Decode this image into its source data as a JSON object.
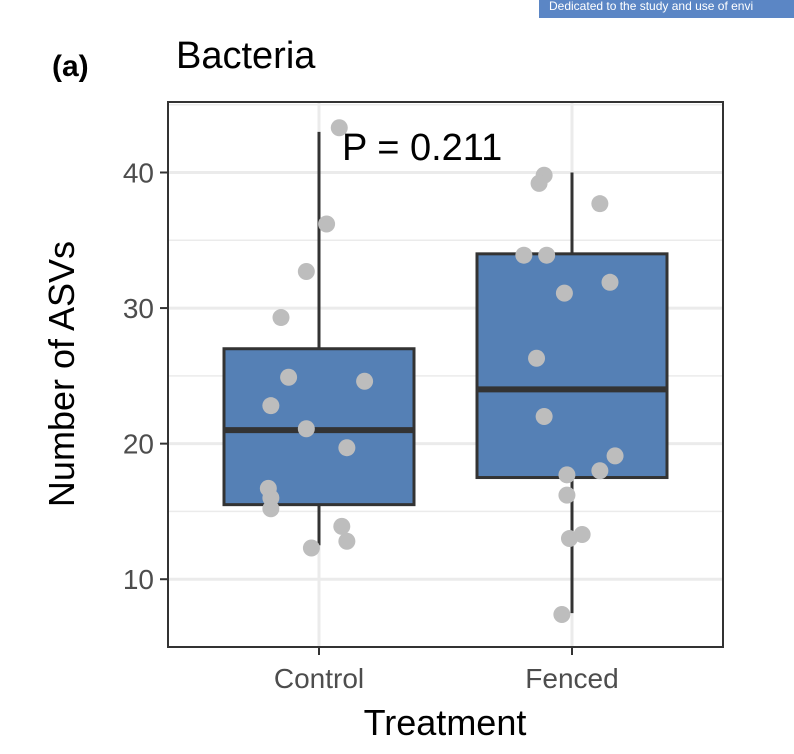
{
  "banner_text": "Dedicated to the study and use of envi",
  "panel_label": "(a)",
  "chart_data": {
    "type": "box",
    "title": "Bacteria",
    "annotation": "P = 0.211",
    "xlabel": "Treatment",
    "ylabel": "Number of ASVs",
    "ylim": [
      5,
      45.2
    ],
    "yticks": [
      10,
      20,
      30,
      40
    ],
    "categories": [
      "Control",
      "Fenced"
    ],
    "grid": true,
    "colors": {
      "box_fill": "#5580b5",
      "box_edge": "#333333",
      "points": "#bdbdbd",
      "grid": "#ebebeb"
    },
    "boxes": [
      {
        "category": "Control",
        "q1": 15.5,
        "median": 21.0,
        "q3": 27.0,
        "whisker_low": 12.5,
        "whisker_high": 43.0
      },
      {
        "category": "Fenced",
        "q1": 17.5,
        "median": 24.0,
        "q3": 34.0,
        "whisker_low": 7.5,
        "whisker_high": 40.0
      }
    ],
    "points": [
      {
        "category": "Control",
        "jitter": 0.08,
        "y": 43.3
      },
      {
        "category": "Control",
        "jitter": 0.03,
        "y": 36.2
      },
      {
        "category": "Control",
        "jitter": -0.05,
        "y": 32.7
      },
      {
        "category": "Control",
        "jitter": -0.15,
        "y": 29.3
      },
      {
        "category": "Control",
        "jitter": -0.12,
        "y": 24.9
      },
      {
        "category": "Control",
        "jitter": 0.18,
        "y": 24.6
      },
      {
        "category": "Control",
        "jitter": -0.19,
        "y": 22.8
      },
      {
        "category": "Control",
        "jitter": -0.05,
        "y": 21.1
      },
      {
        "category": "Control",
        "jitter": 0.11,
        "y": 19.7
      },
      {
        "category": "Control",
        "jitter": -0.2,
        "y": 16.7
      },
      {
        "category": "Control",
        "jitter": -0.19,
        "y": 16.0
      },
      {
        "category": "Control",
        "jitter": -0.19,
        "y": 15.2
      },
      {
        "category": "Control",
        "jitter": 0.09,
        "y": 13.9
      },
      {
        "category": "Control",
        "jitter": 0.11,
        "y": 12.8
      },
      {
        "category": "Control",
        "jitter": -0.03,
        "y": 12.3
      },
      {
        "category": "Fenced",
        "jitter": -0.11,
        "y": 39.8
      },
      {
        "category": "Fenced",
        "jitter": -0.13,
        "y": 39.2
      },
      {
        "category": "Fenced",
        "jitter": 0.11,
        "y": 37.7
      },
      {
        "category": "Fenced",
        "jitter": -0.19,
        "y": 33.9
      },
      {
        "category": "Fenced",
        "jitter": -0.1,
        "y": 33.9
      },
      {
        "category": "Fenced",
        "jitter": 0.15,
        "y": 31.9
      },
      {
        "category": "Fenced",
        "jitter": -0.03,
        "y": 31.1
      },
      {
        "category": "Fenced",
        "jitter": -0.14,
        "y": 26.3
      },
      {
        "category": "Fenced",
        "jitter": -0.11,
        "y": 22.0
      },
      {
        "category": "Fenced",
        "jitter": 0.17,
        "y": 19.1
      },
      {
        "category": "Fenced",
        "jitter": 0.11,
        "y": 18.0
      },
      {
        "category": "Fenced",
        "jitter": -0.02,
        "y": 17.7
      },
      {
        "category": "Fenced",
        "jitter": -0.02,
        "y": 16.2
      },
      {
        "category": "Fenced",
        "jitter": 0.04,
        "y": 13.3
      },
      {
        "category": "Fenced",
        "jitter": -0.01,
        "y": 13.0
      },
      {
        "category": "Fenced",
        "jitter": -0.04,
        "y": 7.4
      }
    ]
  }
}
